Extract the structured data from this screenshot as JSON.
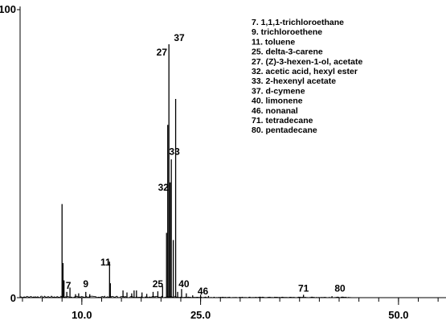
{
  "chart_data": {
    "type": "line",
    "title": "",
    "xlabel": "",
    "ylabel": "",
    "xlim": [
      2.2,
      56.0
    ],
    "ylim": [
      0,
      100
    ],
    "grid": false,
    "x_ticks": [
      {
        "value": 10.0,
        "label": "10.0"
      },
      {
        "value": 25.0,
        "label": "25.0"
      },
      {
        "value": 50.0,
        "label": "50.0"
      }
    ],
    "y_ticks": [
      {
        "value": 0,
        "label": "0"
      },
      {
        "value": 100,
        "label": "100"
      }
    ],
    "x_minor_step": 2.5,
    "legend_position": "top-right",
    "legend": [
      "7. 1,1,1-trichloroethane",
      "9. trichloroethene",
      "11. toluene",
      "25. delta-3-carene",
      "27. (Z)-3-hexen-1-ol, acetate",
      "32. acetic acid, hexyl ester",
      "33. 2-hexenyl acetate",
      "37. d-cymene",
      "40. limonene",
      "46. nonanal",
      "71. tetradecane",
      "80. pentadecane"
    ],
    "peaks": [
      {
        "x": 7.5,
        "y": 32.5
      },
      {
        "x": 7.62,
        "y": 12.0
      },
      {
        "x": 7.75,
        "y": 6.0
      },
      {
        "x": 8.1,
        "y": 2.0
      },
      {
        "x": 8.5,
        "y": 3.5
      },
      {
        "x": 9.2,
        "y": 1.2
      },
      {
        "x": 9.6,
        "y": 1.5
      },
      {
        "x": 10.5,
        "y": 2.0
      },
      {
        "x": 11.0,
        "y": 1.2
      },
      {
        "x": 13.5,
        "y": 12.5
      },
      {
        "x": 13.6,
        "y": 5.0
      },
      {
        "x": 15.2,
        "y": 2.5
      },
      {
        "x": 15.7,
        "y": 1.8
      },
      {
        "x": 16.3,
        "y": 1.5
      },
      {
        "x": 16.6,
        "y": 2.5
      },
      {
        "x": 16.9,
        "y": 2.5
      },
      {
        "x": 17.6,
        "y": 1.8
      },
      {
        "x": 18.2,
        "y": 1.3
      },
      {
        "x": 19.0,
        "y": 2.0
      },
      {
        "x": 19.6,
        "y": 2.2
      },
      {
        "x": 20.2,
        "y": 4.0
      },
      {
        "x": 20.7,
        "y": 22.5
      },
      {
        "x": 20.85,
        "y": 60.0
      },
      {
        "x": 21.0,
        "y": 88.0
      },
      {
        "x": 21.15,
        "y": 40.0
      },
      {
        "x": 21.3,
        "y": 48.0
      },
      {
        "x": 21.55,
        "y": 20.0
      },
      {
        "x": 21.85,
        "y": 69.0
      },
      {
        "x": 22.1,
        "y": 2.0
      },
      {
        "x": 22.6,
        "y": 3.0
      },
      {
        "x": 23.2,
        "y": 1.5
      },
      {
        "x": 24.0,
        "y": 0.8
      },
      {
        "x": 25.0,
        "y": 1.0
      },
      {
        "x": 26.0,
        "y": 0.6
      },
      {
        "x": 38.0,
        "y": 1.0
      },
      {
        "x": 41.6,
        "y": 0.5
      }
    ],
    "peak_labels": [
      {
        "label": "7",
        "x": 8.3,
        "y": 2.0
      },
      {
        "label": "9",
        "x": 10.5,
        "y": 2.5
      },
      {
        "label": "11",
        "x": 13.0,
        "y": 10.0
      },
      {
        "label": "25",
        "x": 19.6,
        "y": 2.5
      },
      {
        "label": "27",
        "x": 20.1,
        "y": 83.0
      },
      {
        "label": "37",
        "x": 22.3,
        "y": 88.0
      },
      {
        "label": "33",
        "x": 21.7,
        "y": 48.5
      },
      {
        "label": "32",
        "x": 20.3,
        "y": 36.0
      },
      {
        "label": "40",
        "x": 22.9,
        "y": 2.5
      },
      {
        "label": "46",
        "x": 25.3,
        "y": 0.0
      },
      {
        "label": "71",
        "x": 38.0,
        "y": 1.0
      },
      {
        "label": "80",
        "x": 42.6,
        "y": 1.0
      }
    ]
  }
}
